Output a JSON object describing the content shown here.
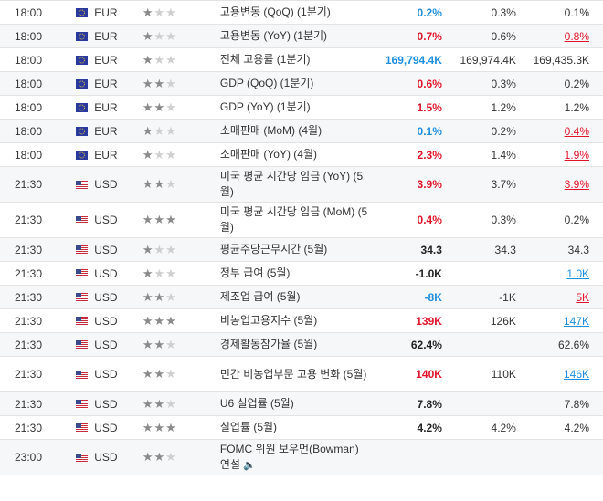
{
  "rows": [
    {
      "time": "18:00",
      "currency": "EUR",
      "stars": 1,
      "event": "고용변동 (QoQ) (1분기)",
      "actual": "0.2%",
      "actual_color": "neg",
      "forecast": "0.3%",
      "previous": "0.1%",
      "prev_style": ""
    },
    {
      "time": "18:00",
      "currency": "EUR",
      "stars": 1,
      "event": "고용변동 (YoY) (1분기)",
      "actual": "0.7%",
      "actual_color": "pos",
      "forecast": "0.6%",
      "previous": "0.8%",
      "prev_style": "rev-neg"
    },
    {
      "time": "18:00",
      "currency": "EUR",
      "stars": 1,
      "event": "전체 고용률 (1분기)",
      "actual": "169,794.4K",
      "actual_color": "neg",
      "forecast": "169,974.4K",
      "previous": "169,435.3K",
      "prev_style": ""
    },
    {
      "time": "18:00",
      "currency": "EUR",
      "stars": 2,
      "event": "GDP (QoQ) (1분기)",
      "actual": "0.6%",
      "actual_color": "pos",
      "forecast": "0.3%",
      "previous": "0.2%",
      "prev_style": ""
    },
    {
      "time": "18:00",
      "currency": "EUR",
      "stars": 2,
      "event": "GDP (YoY) (1분기)",
      "actual": "1.5%",
      "actual_color": "pos",
      "forecast": "1.2%",
      "previous": "1.2%",
      "prev_style": ""
    },
    {
      "time": "18:00",
      "currency": "EUR",
      "stars": 1,
      "event": "소매판매 (MoM) (4월)",
      "actual": "0.1%",
      "actual_color": "neg",
      "forecast": "0.2%",
      "previous": "0.4%",
      "prev_style": "rev-neg"
    },
    {
      "time": "18:00",
      "currency": "EUR",
      "stars": 1,
      "event": "소매판매 (YoY) (4월)",
      "actual": "2.3%",
      "actual_color": "pos",
      "forecast": "1.4%",
      "previous": "1.9%",
      "prev_style": "rev-neg"
    },
    {
      "time": "21:30",
      "currency": "USD",
      "stars": 2,
      "event": "미국 평균 시간당 임금 (YoY) (5월)",
      "actual": "3.9%",
      "actual_color": "pos",
      "forecast": "3.7%",
      "previous": "3.9%",
      "prev_style": "rev-neg"
    },
    {
      "time": "21:30",
      "currency": "USD",
      "stars": 3,
      "event": "미국 평균 시간당 임금 (MoM) (5월)",
      "actual": "0.4%",
      "actual_color": "pos",
      "forecast": "0.3%",
      "previous": "0.2%",
      "prev_style": ""
    },
    {
      "time": "21:30",
      "currency": "USD",
      "stars": 1,
      "event": "평균주당근무시간 (5월)",
      "actual": "34.3",
      "actual_color": "neu",
      "forecast": "34.3",
      "previous": "34.3",
      "prev_style": ""
    },
    {
      "time": "21:30",
      "currency": "USD",
      "stars": 1,
      "event": "정부 급여 (5월)",
      "actual": "-1.0K",
      "actual_color": "neu",
      "forecast": "",
      "previous": "1.0K",
      "prev_style": "rev-pos"
    },
    {
      "time": "21:30",
      "currency": "USD",
      "stars": 2,
      "event": "제조업 급여 (5월)",
      "actual": "-8K",
      "actual_color": "neg",
      "forecast": "-1K",
      "previous": "5K",
      "prev_style": "rev-neg"
    },
    {
      "time": "21:30",
      "currency": "USD",
      "stars": 3,
      "event": "비농업고용지수 (5월)",
      "actual": "139K",
      "actual_color": "pos",
      "forecast": "126K",
      "previous": "147K",
      "prev_style": "rev-pos"
    },
    {
      "time": "21:30",
      "currency": "USD",
      "stars": 2,
      "event": "경제활동참가율 (5월)",
      "actual": "62.4%",
      "actual_color": "neu",
      "forecast": "",
      "previous": "62.6%",
      "prev_style": ""
    },
    {
      "time": "21:30",
      "currency": "USD",
      "stars": 2,
      "event": "민간 비농업부문 고용 변화 (5월)",
      "actual": "140K",
      "actual_color": "pos",
      "forecast": "110K",
      "previous": "146K",
      "prev_style": "rev-pos"
    },
    {
      "time": "21:30",
      "currency": "USD",
      "stars": 2,
      "event": "U6 실업률 (5월)",
      "actual": "7.8%",
      "actual_color": "neu",
      "forecast": "",
      "previous": "7.8%",
      "prev_style": ""
    },
    {
      "time": "21:30",
      "currency": "USD",
      "stars": 3,
      "event": "실업률 (5월)",
      "actual": "4.2%",
      "actual_color": "neu",
      "forecast": "4.2%",
      "previous": "4.2%",
      "prev_style": ""
    },
    {
      "time": "23:00",
      "currency": "USD",
      "stars": 2,
      "event": "FOMC 위원 보우먼(Bowman) 연설",
      "actual": "",
      "actual_color": "neu",
      "forecast": "",
      "previous": "",
      "prev_style": "",
      "speech": true
    }
  ],
  "colors": {
    "positive": "#e0142a",
    "negative": "#1e8fe0",
    "star_on": "#8a8a8a",
    "star_off": "#cfcfcf"
  }
}
